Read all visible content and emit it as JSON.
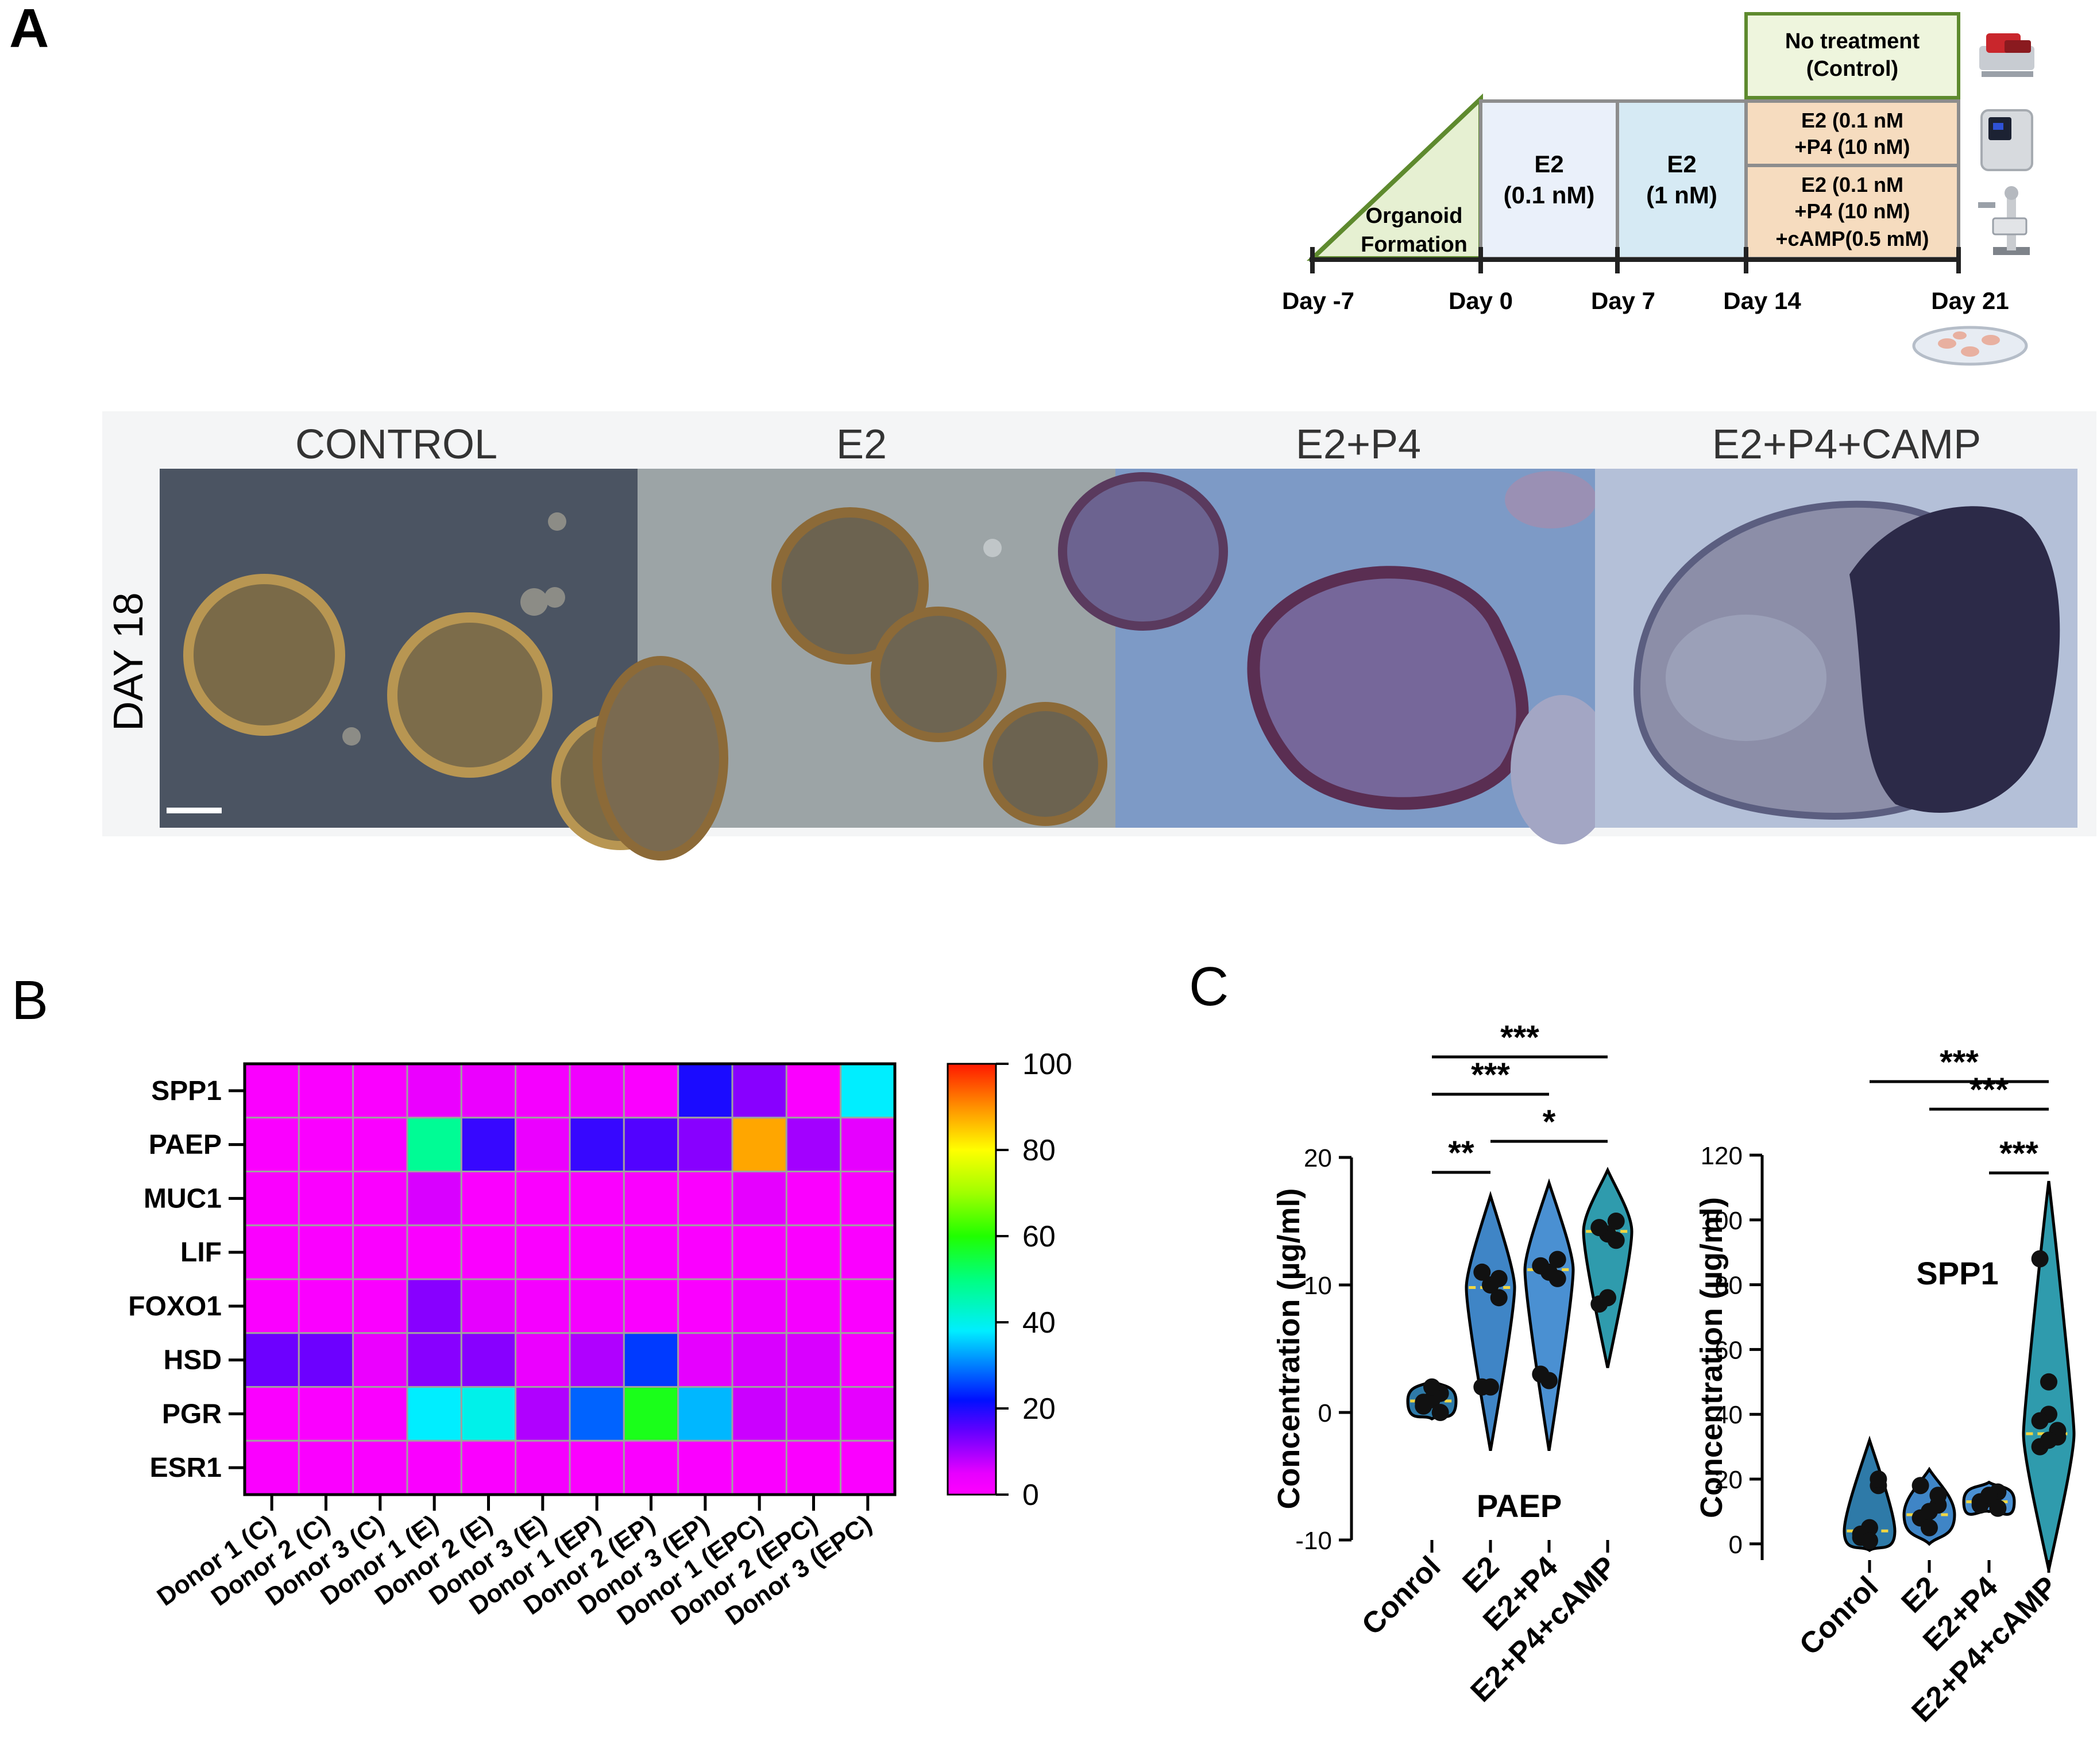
{
  "panels": {
    "a": "A",
    "b": "B",
    "c": "C"
  },
  "timeline": {
    "phases": [
      {
        "id": "formation",
        "lines": [
          "Organoid",
          "Formation"
        ],
        "color": "#e6f0d2"
      },
      {
        "id": "e2-low",
        "lines": [
          "E2",
          "(0.1 nM)"
        ],
        "color": "#eaf0fa"
      },
      {
        "id": "e2-high",
        "lines": [
          "E2",
          "(1 nM)"
        ],
        "color": "#d6eaf4"
      }
    ],
    "treatments": [
      {
        "id": "control",
        "lines": [
          "No treatment",
          "(Control)"
        ],
        "color": "#eef5dd"
      },
      {
        "id": "e2-p4",
        "lines": [
          "E2 (0.1 nM",
          "+P4 (10 nM)"
        ],
        "color": "#f6dcbf"
      },
      {
        "id": "e2-p4-camp",
        "lines": [
          "E2 (0.1 nM",
          "+P4 (10 nM)",
          "+cAMP(0.5 mM)"
        ],
        "color": "#f6dcbf"
      }
    ],
    "days": [
      "Day -7",
      "Day 0",
      "Day 7",
      "Day 14",
      "Day 21"
    ],
    "icons": [
      "incubator-icon",
      "plate-reader-icon",
      "microscope-icon",
      "petri-dish-icon"
    ]
  },
  "micrographs": {
    "row_label": "DAY 18",
    "columns": [
      {
        "title": "CONTROL",
        "bg": "#4a5260"
      },
      {
        "title": "E2",
        "bg": "#9aa2a5"
      },
      {
        "title": "E2+P4",
        "bg": "#7e9cc8"
      },
      {
        "title": "E2+P4+CAMP",
        "bg": "#b6c2d8"
      }
    ]
  },
  "chart_data": [
    {
      "type": "heatmap",
      "title": "",
      "rows": [
        "SPP1",
        "PAEP",
        "MUC1",
        "LIF",
        "FOXO1",
        "HSD",
        "PGR",
        "ESR1"
      ],
      "columns": [
        "Donor 1 (C)",
        "Donor 2 (C)",
        "Donor 3 (C)",
        "Donor 1 (E)",
        "Donor 2 (E)",
        "Donor 3 (E)",
        "Donor 1 (EP)",
        "Donor 2 (EP)",
        "Donor 3 (EP)",
        "Donor 1 (EPC)",
        "Donor 2 (EPC)",
        "Donor 3 (EPC)"
      ],
      "values": [
        [
          1,
          1,
          1,
          4,
          4,
          2,
          3,
          1,
          20,
          12,
          1,
          38
        ],
        [
          1,
          1,
          1,
          48,
          18,
          4,
          18,
          16,
          12,
          88,
          10,
          5
        ],
        [
          1,
          1,
          1,
          6,
          1,
          1,
          1,
          1,
          1,
          5,
          1,
          1
        ],
        [
          1,
          1,
          1,
          1,
          1,
          1,
          1,
          1,
          1,
          1,
          1,
          1
        ],
        [
          1,
          1,
          1,
          12,
          5,
          2,
          2,
          1,
          1,
          3,
          2,
          1
        ],
        [
          14,
          14,
          4,
          12,
          12,
          4,
          9,
          25,
          5,
          6,
          6,
          1
        ],
        [
          1,
          1,
          1,
          38,
          40,
          9,
          28,
          58,
          34,
          7,
          6,
          5
        ],
        [
          1,
          1,
          1,
          1,
          1,
          2,
          1,
          1,
          1,
          1,
          1,
          1
        ]
      ],
      "colorbar": {
        "min": 0,
        "max": 100,
        "ticks": [
          "0",
          "20",
          "40",
          "60",
          "80",
          "100"
        ]
      }
    },
    {
      "type": "violin",
      "label": "PAEP",
      "ylabel": "Concentration (µg/ml)",
      "ylim": [
        -10,
        20
      ],
      "yticks": [
        "-10",
        "0",
        "10",
        "20"
      ],
      "categories": [
        "Conrol",
        "E2",
        "E2+P4",
        "E2+P4+cAMP"
      ],
      "colors": [
        "#2e7aa8",
        "#3f85c6",
        "#4a90d2",
        "#2f9bad"
      ],
      "points": [
        [
          0.5,
          1.0,
          1.5,
          0.8,
          2.0,
          0.0
        ],
        [
          2.0,
          10.0,
          9.0,
          11.0,
          2.0,
          10.5
        ],
        [
          3.0,
          11.0,
          12.0,
          11.5,
          2.5,
          10.5
        ],
        [
          8.5,
          14.0,
          15.0,
          14.5,
          9.0,
          13.5
        ]
      ],
      "medians": [
        0.9,
        9.8,
        11.2,
        14.2
      ],
      "ranges": [
        [
          -0.5,
          2.5
        ],
        [
          -3.0,
          17.0
        ],
        [
          -3.0,
          18.0
        ],
        [
          3.5,
          19.0
        ]
      ],
      "significance": [
        {
          "from": 0,
          "to": 1,
          "label": "**"
        },
        {
          "from": 1,
          "to": 3,
          "label": "*"
        },
        {
          "from": 0,
          "to": 2,
          "label": "***"
        },
        {
          "from": 0,
          "to": 3,
          "label": "***"
        }
      ]
    },
    {
      "type": "violin",
      "label": "SPP1",
      "ylabel": "Concentration (µg/ml)",
      "ylim": [
        -5,
        120
      ],
      "yticks": [
        "0",
        "20",
        "40",
        "60",
        "80",
        "100",
        "120"
      ],
      "categories": [
        "Conrol",
        "E2",
        "E2+P4",
        "E2+P4+cAMP"
      ],
      "colors": [
        "#2e7aa8",
        "#3f85c6",
        "#4a90d2",
        "#2f9bad"
      ],
      "points": [
        [
          2,
          5,
          18,
          3,
          1,
          20
        ],
        [
          8,
          10,
          12,
          18,
          5,
          15
        ],
        [
          12,
          14,
          16,
          13,
          15,
          11
        ],
        [
          30,
          40,
          35,
          88,
          50,
          33,
          38,
          32
        ]
      ],
      "medians": [
        4,
        9,
        13,
        34
      ],
      "ranges": [
        [
          -2,
          32
        ],
        [
          0,
          23
        ],
        [
          10,
          19
        ],
        [
          -8,
          112
        ]
      ],
      "significance": [
        {
          "from": 2,
          "to": 3,
          "label": "***"
        },
        {
          "from": 1,
          "to": 3,
          "label": "***"
        },
        {
          "from": 0,
          "to": 3,
          "label": "***"
        }
      ]
    }
  ]
}
